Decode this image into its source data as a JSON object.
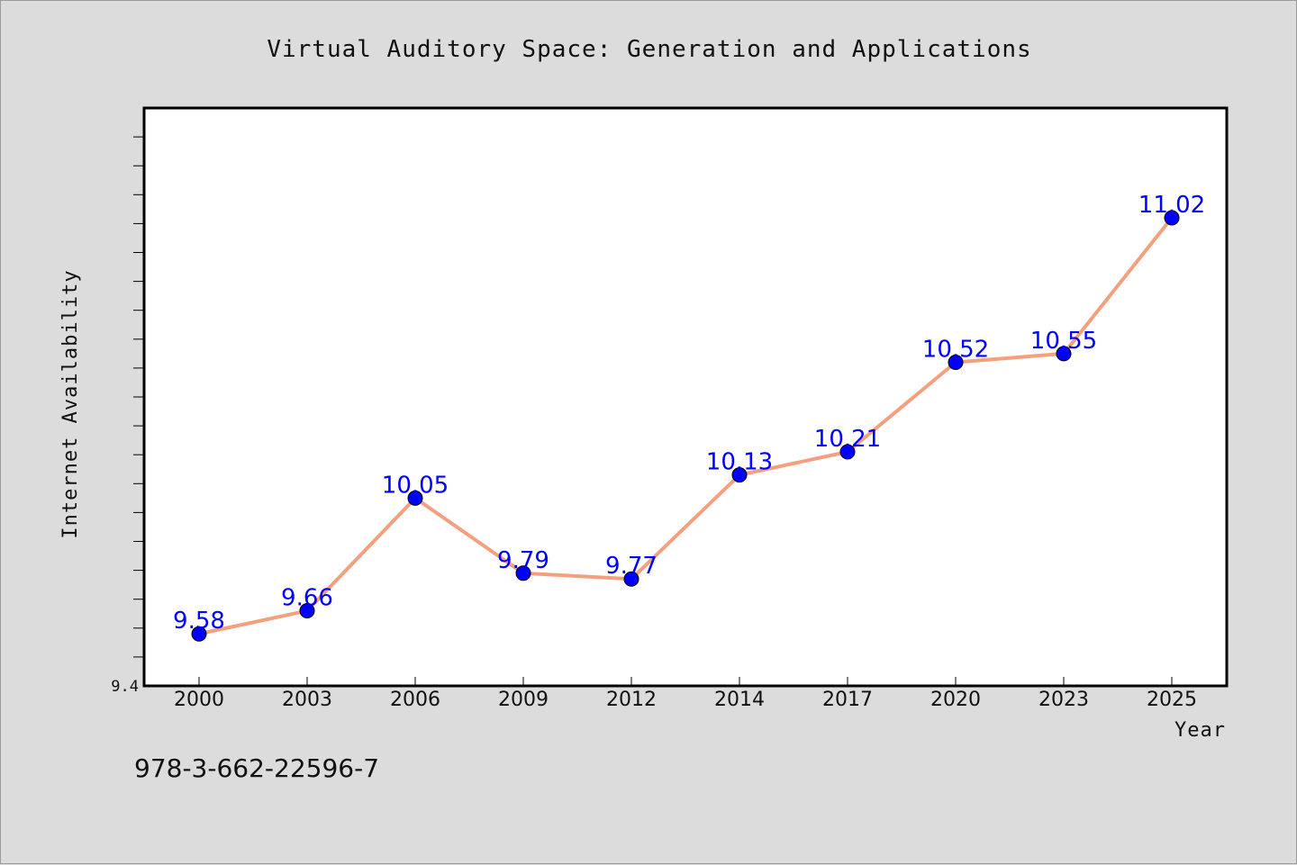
{
  "chart_data": {
    "type": "line",
    "title": "Virtual Auditory Space: Generation and Applications",
    "xlabel": "Year",
    "ylabel": "Internet Availability",
    "categories": [
      "2000",
      "2003",
      "2006",
      "2009",
      "2012",
      "2014",
      "2017",
      "2020",
      "2023",
      "2025"
    ],
    "series": [
      {
        "values": [
          9.58,
          9.66,
          10.05,
          9.79,
          9.77,
          10.13,
          10.21,
          10.52,
          10.55,
          11.02
        ]
      }
    ],
    "ylim": [
      9.4,
      11.4
    ],
    "y_tick_labels": [
      "9.4"
    ],
    "grid": false,
    "line_color": "#f4a07e",
    "marker_color": "#0000ff",
    "label_color": "#0000ff",
    "plot_background": "#ffffff",
    "page_background": "#dcdcdc"
  },
  "footer": {
    "isbn": "978-3-662-22596-7"
  }
}
